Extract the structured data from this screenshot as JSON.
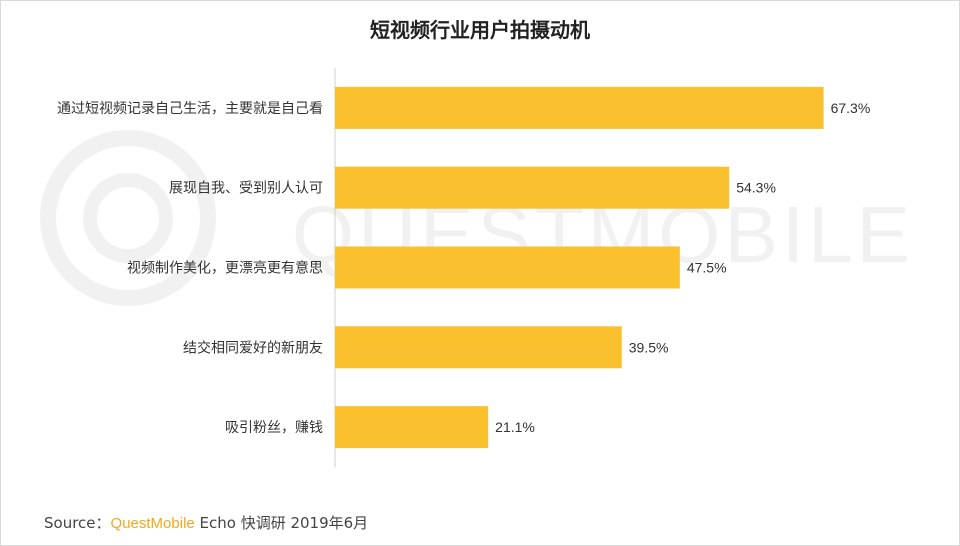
{
  "chart_data": {
    "type": "bar",
    "orientation": "horizontal",
    "title": "短视频行业用户拍摄动机",
    "categories": [
      "通过短视频记录自己生活，主要就是自己看",
      "展现自我、受到别人认可",
      "视频制作美化，更漂亮更有意思",
      "结交相同爱好的新朋友",
      "吸引粉丝，赚钱"
    ],
    "values": [
      67.3,
      54.3,
      47.5,
      39.5,
      21.1
    ],
    "value_labels": [
      "67.3%",
      "54.3%",
      "47.5%",
      "39.5%",
      "21.1%"
    ],
    "xlim": [
      0,
      80
    ],
    "grid": false,
    "legend": "none",
    "bar_color": "#fbc02d"
  },
  "watermark": {
    "text": "QUESTMOBILE",
    "color": "#f1f1f1"
  },
  "source": {
    "prefix": "Source：",
    "brand": "QuestMobile",
    "suffix": " Echo 快调研 2019年6月"
  }
}
